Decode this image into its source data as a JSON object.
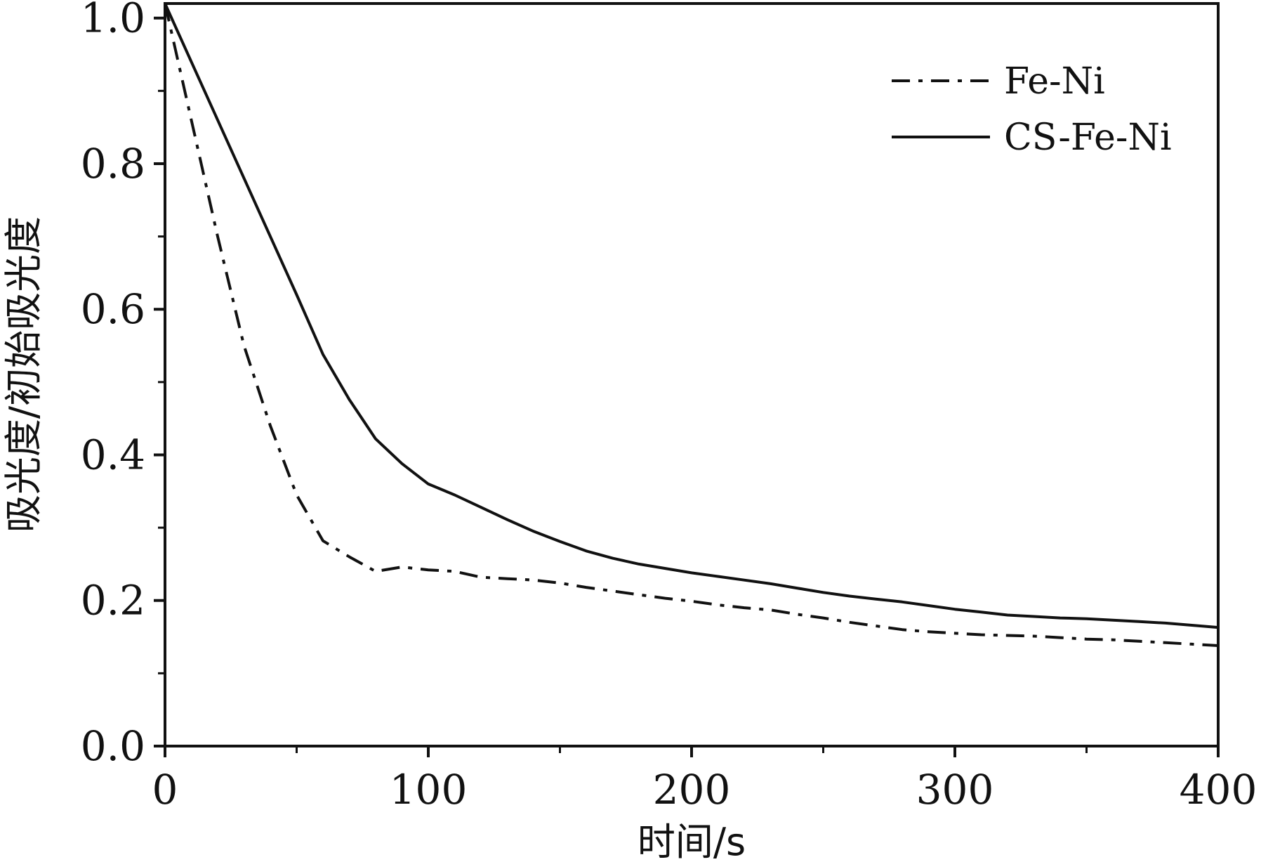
{
  "chart_data": {
    "type": "line",
    "title": "",
    "xlabel": "时间/s",
    "ylabel": "吸光度/初始吸光度",
    "xlim": [
      0,
      400
    ],
    "ylim": [
      0,
      1.0
    ],
    "xticks": [
      0,
      100,
      200,
      300,
      400
    ],
    "xtick_labels": [
      "0",
      "100",
      "200",
      "300",
      "400"
    ],
    "yticks": [
      0.0,
      0.2,
      0.4,
      0.6,
      0.8,
      1.0
    ],
    "ytick_labels": [
      "0.0",
      "0.2",
      "0.4",
      "0.6",
      "0.8",
      "1.0"
    ],
    "grid": false,
    "legend_position": "top-right",
    "series": [
      {
        "name": "Fe-Ni",
        "style": "dash-dot",
        "color": "#111111",
        "x": [
          0,
          10,
          20,
          30,
          40,
          50,
          60,
          70,
          80,
          90,
          100,
          110,
          120,
          130,
          140,
          150,
          160,
          170,
          180,
          190,
          200,
          210,
          220,
          230,
          240,
          250,
          260,
          270,
          280,
          290,
          300,
          310,
          320,
          330,
          340,
          350,
          360,
          370,
          380,
          390,
          400
        ],
        "y": [
          1.02,
          0.86,
          0.7,
          0.55,
          0.44,
          0.345,
          0.282,
          0.26,
          0.24,
          0.246,
          0.242,
          0.24,
          0.232,
          0.23,
          0.228,
          0.224,
          0.218,
          0.213,
          0.208,
          0.203,
          0.199,
          0.194,
          0.19,
          0.187,
          0.181,
          0.176,
          0.17,
          0.165,
          0.16,
          0.157,
          0.155,
          0.153,
          0.152,
          0.151,
          0.149,
          0.147,
          0.146,
          0.144,
          0.142,
          0.14,
          0.138
        ]
      },
      {
        "name": "CS-Fe-Ni",
        "style": "solid",
        "color": "#111111",
        "x": [
          0,
          10,
          20,
          30,
          40,
          50,
          60,
          70,
          80,
          90,
          100,
          110,
          120,
          130,
          140,
          150,
          160,
          170,
          180,
          190,
          200,
          210,
          220,
          230,
          240,
          250,
          260,
          270,
          280,
          290,
          300,
          310,
          320,
          330,
          340,
          350,
          360,
          370,
          380,
          390,
          400
        ],
        "y": [
          1.02,
          0.94,
          0.86,
          0.78,
          0.7,
          0.62,
          0.538,
          0.476,
          0.422,
          0.388,
          0.36,
          0.345,
          0.328,
          0.311,
          0.295,
          0.281,
          0.268,
          0.258,
          0.25,
          0.244,
          0.238,
          0.233,
          0.228,
          0.223,
          0.217,
          0.211,
          0.206,
          0.202,
          0.198,
          0.193,
          0.188,
          0.184,
          0.18,
          0.178,
          0.176,
          0.175,
          0.173,
          0.171,
          0.169,
          0.166,
          0.163
        ]
      }
    ]
  }
}
